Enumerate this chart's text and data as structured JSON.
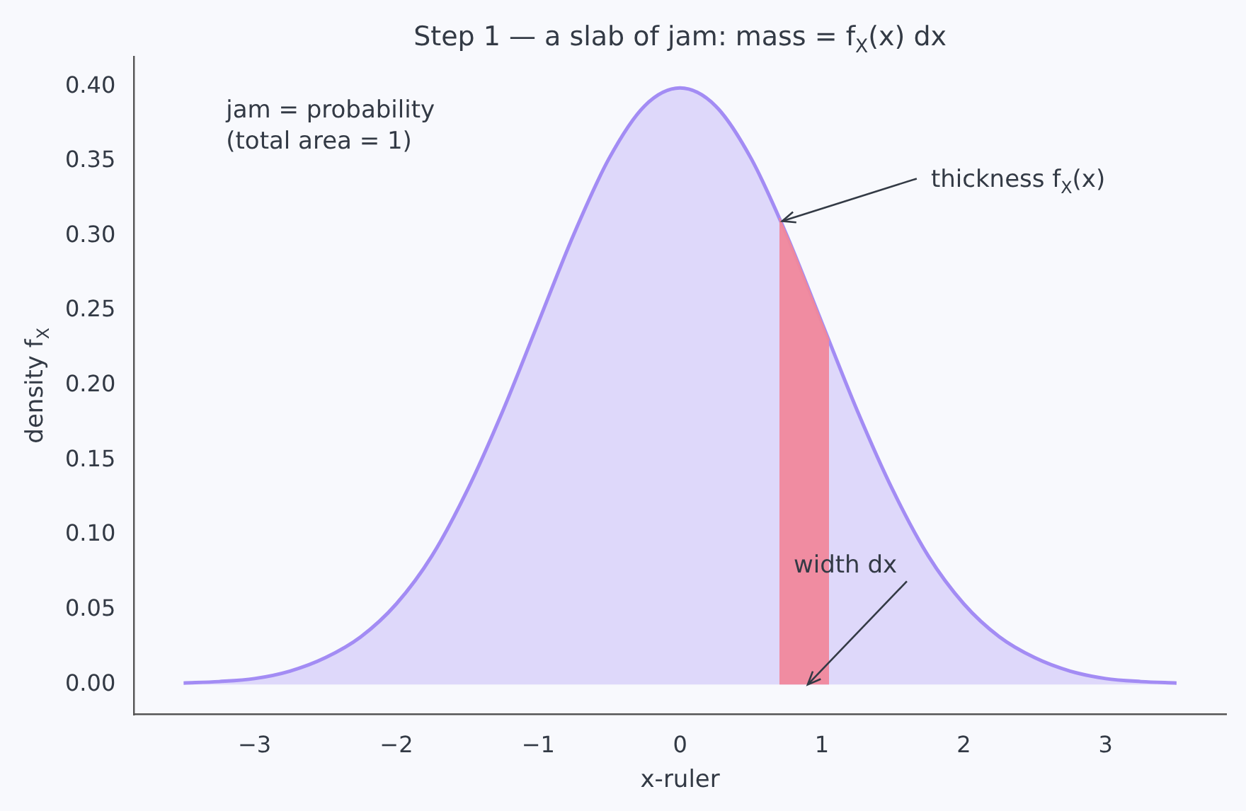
{
  "chart_data": {
    "type": "area",
    "title": "Step 1 — a slab of jam: mass = f$_{X}$(x) dx",
    "xlabel": "x-ruler",
    "ylabel": "density f$_{X}$",
    "x": [
      -3.5,
      -3.25,
      -3,
      -2.75,
      -2.5,
      -2.25,
      -2,
      -1.75,
      -1.5,
      -1.25,
      -1,
      -0.75,
      -0.5,
      -0.25,
      0,
      0.25,
      0.5,
      0.75,
      1,
      1.25,
      1.5,
      1.75,
      2,
      2.25,
      2.5,
      2.75,
      3,
      3.25,
      3.5
    ],
    "series": [
      {
        "color": "#a38cf4",
        "values": [
          0.001,
          0.002,
          0.004,
          0.009,
          0.018,
          0.032,
          0.054,
          0.086,
          0.13,
          0.183,
          0.242,
          0.301,
          0.352,
          0.387,
          0.399,
          0.387,
          0.352,
          0.301,
          0.242,
          0.183,
          0.13,
          0.086,
          0.054,
          0.032,
          0.018,
          0.009,
          0.004,
          0.002,
          0.001
        ]
      },
      {
        "color": "#f0889c",
        "x": [
          0.7,
          0.8,
          0.9,
          1.0,
          1.05
        ],
        "values": [
          0.312,
          0.29,
          0.266,
          0.242,
          0.23
        ]
      }
    ],
    "xlim": [
      -3.85,
      3.85
    ],
    "xticks": [
      {
        "value": -3,
        "label": "−3"
      },
      {
        "value": -2,
        "label": "−2"
      },
      {
        "value": -1,
        "label": "−1"
      },
      0,
      1,
      2,
      3
    ],
    "ylim": [
      -0.02,
      0.42
    ],
    "yticks": [
      {
        "value": 0,
        "label": "0.00"
      },
      {
        "value": 0.05,
        "label": "0.05"
      },
      {
        "value": 0.1,
        "label": "0.10"
      },
      {
        "value": 0.15,
        "label": "0.15"
      },
      {
        "value": 0.2,
        "label": "0.20"
      },
      {
        "value": 0.25,
        "label": "0.25"
      },
      {
        "value": 0.3,
        "label": "0.30"
      },
      {
        "value": 0.35,
        "label": "0.35"
      },
      {
        "value": 0.4,
        "label": "0.40"
      }
    ],
    "grid": false,
    "legend": false,
    "annotations": [
      "jam = probability\n(total area = 1)",
      {
        "text": "thickness f$_{X}$(x)",
        "x": 0.72,
        "y": 0.31
      },
      {
        "text": "width dx",
        "x": 0.9,
        "y": 0
      }
    ]
  }
}
